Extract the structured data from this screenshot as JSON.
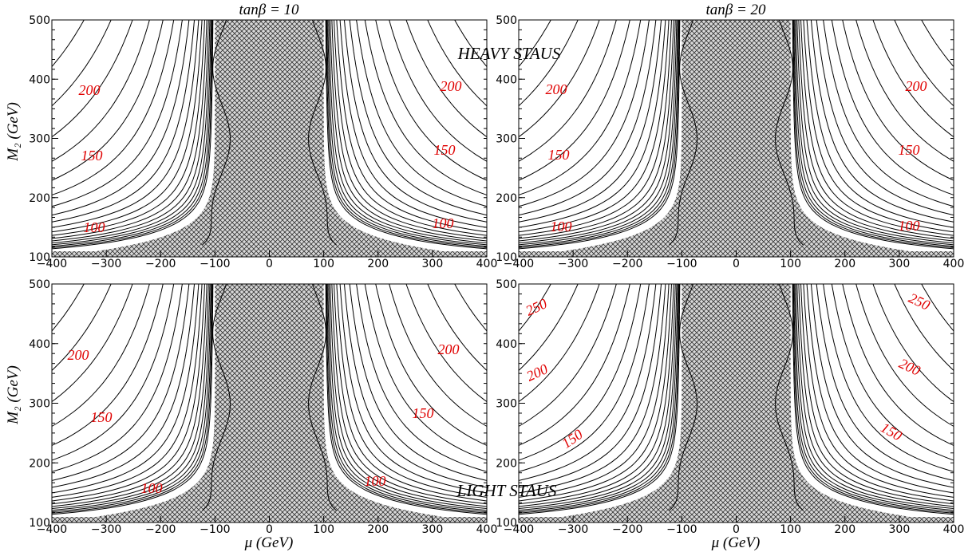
{
  "chart_data": [
    {
      "type": "contour",
      "title": "tanβ = 10",
      "ylabel": "M₂ (GeV)",
      "annotation": "HEAVY STAUS",
      "xlim": [
        -400,
        400
      ],
      "ylim": [
        100,
        500
      ],
      "xticks": [
        {
          "value": -400,
          "label": "−400"
        },
        {
          "value": -300,
          "label": "−300"
        },
        {
          "value": -200,
          "label": "−200"
        },
        {
          "value": -100,
          "label": "−100"
        },
        0,
        100,
        200,
        300,
        400
      ],
      "yticks": [
        100,
        200,
        300,
        400,
        500
      ],
      "contour_labels": [
        200,
        200,
        150,
        150,
        100,
        100
      ]
    },
    {
      "type": "contour",
      "title": "tanβ = 20",
      "xlim": [
        -400,
        400
      ],
      "ylim": [
        100,
        500
      ],
      "xticks": [
        {
          "value": -400,
          "label": "−400"
        },
        {
          "value": -300,
          "label": "−300"
        },
        {
          "value": -200,
          "label": "−200"
        },
        {
          "value": -100,
          "label": "−100"
        },
        0,
        100,
        200,
        300,
        400
      ],
      "yticks": [
        100,
        200,
        300,
        400,
        500
      ],
      "contour_labels": [
        200,
        200,
        150,
        150,
        100,
        100
      ]
    },
    {
      "type": "contour",
      "ylabel": "M₂ (GeV)",
      "xlabel": "μ (GeV)",
      "annotation": "LIGHT STAUS",
      "xlim": [
        -400,
        400
      ],
      "ylim": [
        100,
        500
      ],
      "xticks": [
        {
          "value": -400,
          "label": "−400"
        },
        {
          "value": -300,
          "label": "−300"
        },
        {
          "value": -200,
          "label": "−200"
        },
        {
          "value": -100,
          "label": "−100"
        },
        0,
        100,
        200,
        300,
        400
      ],
      "yticks": [
        100,
        200,
        300,
        400,
        500
      ],
      "contour_labels": [
        200,
        200,
        150,
        150,
        100,
        100
      ]
    },
    {
      "type": "contour",
      "xlabel": "μ (GeV)",
      "xlim": [
        -400,
        400
      ],
      "ylim": [
        100,
        500
      ],
      "xticks": [
        {
          "value": -400,
          "label": "−400"
        },
        {
          "value": -300,
          "label": "−300"
        },
        {
          "value": -200,
          "label": "−200"
        },
        {
          "value": -100,
          "label": "−100"
        },
        0,
        100,
        200,
        300,
        400
      ],
      "yticks": [
        100,
        200,
        300,
        400,
        500
      ],
      "contour_labels": [
        250,
        250,
        200,
        200,
        150,
        150
      ]
    }
  ]
}
